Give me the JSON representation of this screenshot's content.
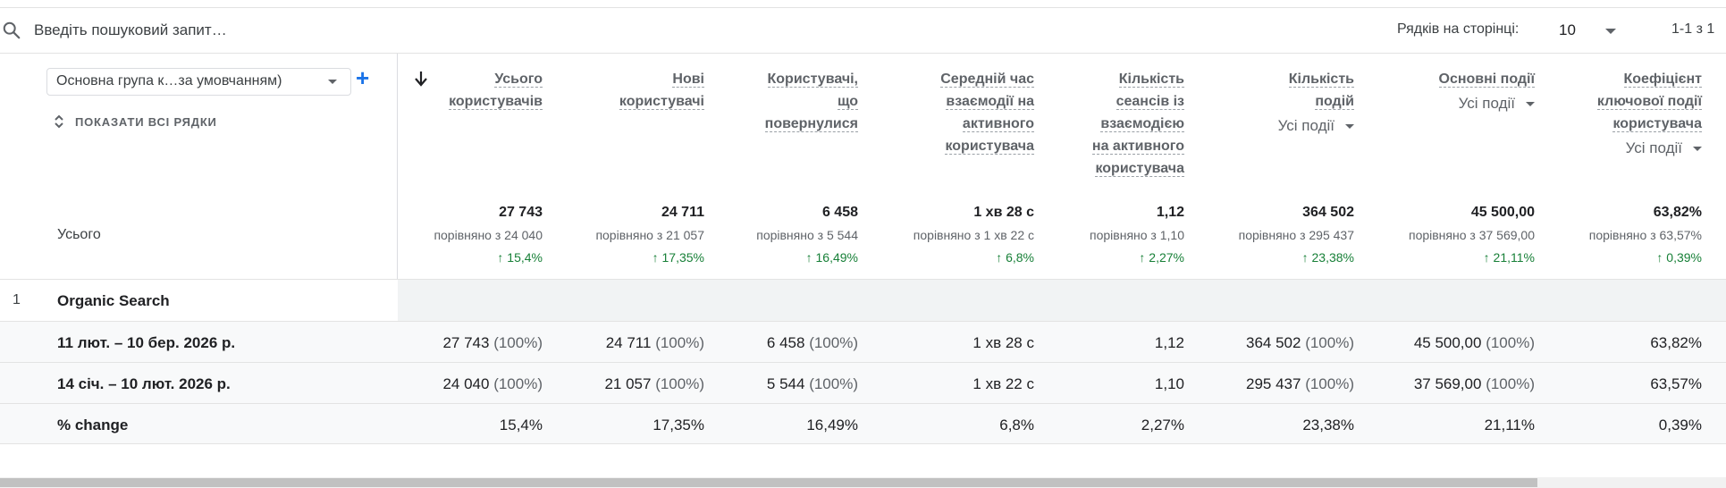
{
  "search": {
    "placeholder": "Введіть пошуковий запит…"
  },
  "pagination": {
    "rows_label": "Рядків на сторінці:",
    "rows_value": "10",
    "range_text": "1-1 з 1"
  },
  "dimension": {
    "selector_label": "Основна група к…за умовчанням)",
    "add_icon": "plus-icon",
    "show_all_label": "ПОКАЗАТИ ВСІ РЯДКИ"
  },
  "columns": [
    {
      "lines": [
        "Усього",
        "користувачів"
      ],
      "sub": ""
    },
    {
      "lines": [
        "Нові",
        "користувачі"
      ],
      "sub": ""
    },
    {
      "lines": [
        "Користувачі,",
        "що",
        "повернулися"
      ],
      "sub": ""
    },
    {
      "lines": [
        "Середній час",
        "взаємодії на",
        "активного",
        "користувача"
      ],
      "sub": ""
    },
    {
      "lines": [
        "Кількість",
        "сеансів із",
        "взаємодією",
        "на активного",
        "користувача"
      ],
      "sub": ""
    },
    {
      "lines": [
        "Кількість",
        "подій"
      ],
      "sub": "Усі події"
    },
    {
      "lines": [
        "Основні події"
      ],
      "sub": "Усі події"
    },
    {
      "lines": [
        "Коефіцієнт",
        "ключової події",
        "користувача"
      ],
      "sub": "Усі події"
    }
  ],
  "totals": {
    "label": "Усього",
    "values": [
      {
        "value": "27 743",
        "compare": "порівняно з 24 040",
        "change": "15,4%"
      },
      {
        "value": "24 711",
        "compare": "порівняно з 21 057",
        "change": "17,35%"
      },
      {
        "value": "6 458",
        "compare": "порівняно з 5 544",
        "change": "16,49%"
      },
      {
        "value": "1 хв 28 с",
        "compare": "порівняно з 1 хв 22 с",
        "change": "6,8%"
      },
      {
        "value": "1,12",
        "compare": "порівняно з 1,10",
        "change": "2,27%"
      },
      {
        "value": "364 502",
        "compare": "порівняно з 295 437",
        "change": "23,38%"
      },
      {
        "value": "45 500,00",
        "compare": "порівняно з 37 569,00",
        "change": "21,11%"
      },
      {
        "value": "63,82%",
        "compare": "порівняно з 63,57%",
        "change": "0,39%"
      }
    ]
  },
  "rows": [
    {
      "index": "1",
      "name": "Organic Search"
    },
    {
      "name": "11 лют. – 10 бер. 2026 р.",
      "cells": [
        {
          "v": "27 743",
          "p": "(100%)"
        },
        {
          "v": "24 711",
          "p": "(100%)"
        },
        {
          "v": "6 458",
          "p": "(100%)"
        },
        {
          "v": "1 хв 28 с",
          "p": ""
        },
        {
          "v": "1,12",
          "p": ""
        },
        {
          "v": "364 502",
          "p": "(100%)"
        },
        {
          "v": "45 500,00",
          "p": "(100%)"
        },
        {
          "v": "63,82%",
          "p": ""
        }
      ]
    },
    {
      "name": "14 січ. – 10 лют. 2026 р.",
      "cells": [
        {
          "v": "24 040",
          "p": "(100%)"
        },
        {
          "v": "21 057",
          "p": "(100%)"
        },
        {
          "v": "5 544",
          "p": "(100%)"
        },
        {
          "v": "1 хв 22 с",
          "p": ""
        },
        {
          "v": "1,10",
          "p": ""
        },
        {
          "v": "295 437",
          "p": "(100%)"
        },
        {
          "v": "37 569,00",
          "p": "(100%)"
        },
        {
          "v": "63,57%",
          "p": ""
        }
      ]
    },
    {
      "name": "% change",
      "cells": [
        {
          "v": "15,4%",
          "p": ""
        },
        {
          "v": "17,35%",
          "p": ""
        },
        {
          "v": "16,49%",
          "p": ""
        },
        {
          "v": "6,8%",
          "p": ""
        },
        {
          "v": "2,27%",
          "p": ""
        },
        {
          "v": "23,38%",
          "p": ""
        },
        {
          "v": "21,11%",
          "p": ""
        },
        {
          "v": "0,39%",
          "p": ""
        }
      ]
    }
  ],
  "colors": {
    "accent": "#1a73e8",
    "positive": "#188038",
    "header_text": "#5f6368"
  }
}
